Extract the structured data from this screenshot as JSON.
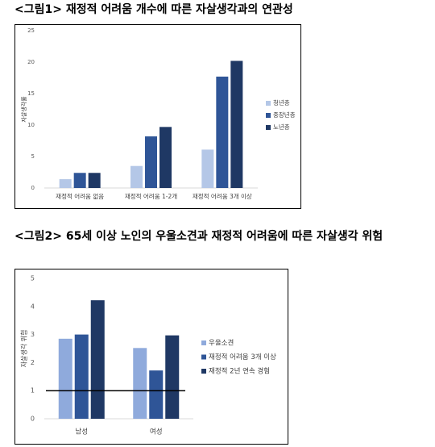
{
  "chart_data": [
    {
      "type": "bar",
      "title": "<그림1> 재정적 어려움 개수에 따른 자살생각과의 연관성",
      "y_label": "자살생각률",
      "categories": [
        "재정적 어려움 없음",
        "재정적 어려움 1-2개",
        "재정적 어려움 3개 이상"
      ],
      "series": [
        {
          "name": "청년층",
          "color": "#b4c7e7",
          "values": [
            1.4,
            3.5,
            6.1
          ]
        },
        {
          "name": "중장년층",
          "color": "#2f5597",
          "values": [
            2.4,
            8.2,
            17.7
          ]
        },
        {
          "name": "노년층",
          "color": "#1f3864",
          "values": [
            2.4,
            9.7,
            20.2
          ]
        }
      ],
      "ylim": [
        0,
        25
      ],
      "yticks": [
        0,
        5,
        10,
        15,
        20,
        25
      ],
      "legend": "right"
    },
    {
      "type": "bar",
      "title": "<그림2> 65세 이상 노인의 우울소견과 재정적 어려움에 따른 자살생각 위험",
      "y_label": "자살생각 위험",
      "categories": [
        "남성",
        "여성"
      ],
      "series": [
        {
          "name": "우울소견",
          "color": "#8faadc",
          "values": [
            2.85,
            2.52
          ]
        },
        {
          "name": "재정적 어려움 3개 이상",
          "color": "#2f5597",
          "values": [
            3.0,
            1.72
          ]
        },
        {
          "name": "재정적 2년 연속 경험",
          "color": "#1f3864",
          "values": [
            4.22,
            2.97
          ]
        }
      ],
      "ylim": [
        0,
        5
      ],
      "yticks": [
        0,
        1,
        2,
        3,
        4,
        5
      ],
      "reference_line": 1,
      "legend": "right"
    }
  ]
}
